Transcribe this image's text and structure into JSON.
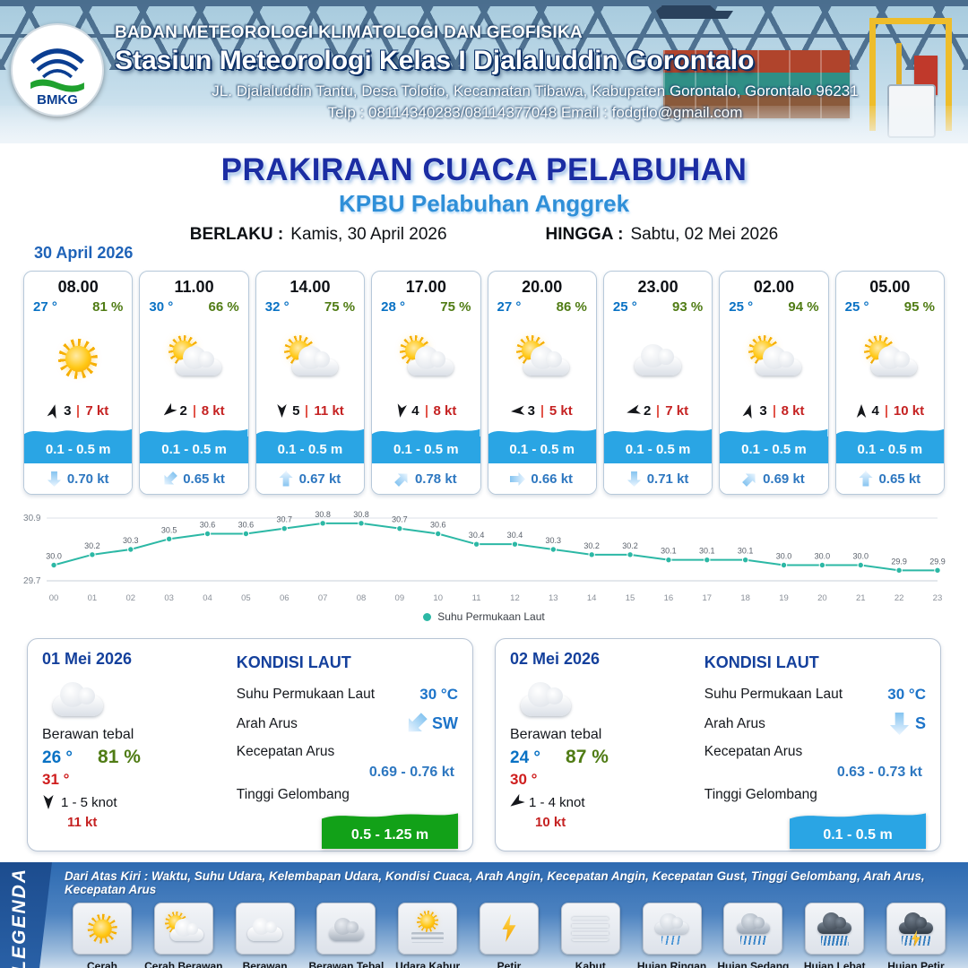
{
  "header": {
    "agency": "BADAN METEOROLOGI KLIMATOLOGI DAN GEOFISIKA",
    "station": "Stasiun Meteorologi Kelas I Djalaluddin Gorontalo",
    "address": "JL. Djalaluddin Tantu, Desa Tolotio, Kecamatan Tibawa, Kabupaten Gorontalo, Gorontalo 96231",
    "contact": "Telp : 08114340283/08114377048 Email : fodgtlo@gmail.com",
    "logo_text": "BMKG"
  },
  "title": {
    "main": "PRAKIRAAN CUACA PELABUHAN",
    "sub": "KPBU Pelabuhan Anggrek",
    "berlaku_label": "BERLAKU :",
    "berlaku_value": "Kamis, 30 April 2026",
    "hingga_label": "HINGGA :",
    "hingga_value": "Sabtu, 02 Mei 2026",
    "forecast_date": "30 April 2026"
  },
  "cards": [
    {
      "time": "08.00",
      "temp": "27 °",
      "humidity": "81 %",
      "icon": "cerah",
      "wind_dir_deg": 15,
      "wind_beaufort": "3",
      "wind_speed": "7 kt",
      "wave_height": "0.1 - 0.5 m",
      "current_dir_deg": 180,
      "current_speed": "0.70 kt"
    },
    {
      "time": "11.00",
      "temp": "30 °",
      "humidity": "66 %",
      "icon": "cerah-berawan",
      "wind_dir_deg": 230,
      "wind_beaufort": "2",
      "wind_speed": "8 kt",
      "wave_height": "0.1 - 0.5 m",
      "current_dir_deg": 225,
      "current_speed": "0.65 kt"
    },
    {
      "time": "14.00",
      "temp": "32 °",
      "humidity": "75 %",
      "icon": "cerah-berawan",
      "wind_dir_deg": 180,
      "wind_beaufort": "5",
      "wind_speed": "11 kt",
      "wave_height": "0.1 - 0.5 m",
      "current_dir_deg": 0,
      "current_speed": "0.67 kt"
    },
    {
      "time": "17.00",
      "temp": "28 °",
      "humidity": "75 %",
      "icon": "cerah-berawan",
      "wind_dir_deg": 190,
      "wind_beaufort": "4",
      "wind_speed": "8 kt",
      "wave_height": "0.1 - 0.5 m",
      "current_dir_deg": 45,
      "current_speed": "0.78 kt"
    },
    {
      "time": "20.00",
      "temp": "27 °",
      "humidity": "86 %",
      "icon": "cerah-berawan",
      "wind_dir_deg": 265,
      "wind_beaufort": "3",
      "wind_speed": "5 kt",
      "wave_height": "0.1 - 0.5 m",
      "current_dir_deg": 90,
      "current_speed": "0.66 kt"
    },
    {
      "time": "23.00",
      "temp": "25 °",
      "humidity": "93 %",
      "icon": "berawan",
      "wind_dir_deg": 255,
      "wind_beaufort": "2",
      "wind_speed": "7 kt",
      "wave_height": "0.1 - 0.5 m",
      "current_dir_deg": 180,
      "current_speed": "0.71 kt"
    },
    {
      "time": "02.00",
      "temp": "25 °",
      "humidity": "94 %",
      "icon": "cerah-berawan",
      "wind_dir_deg": 15,
      "wind_beaufort": "3",
      "wind_speed": "8 kt",
      "wave_height": "0.1 - 0.5 m",
      "current_dir_deg": 45,
      "current_speed": "0.69 kt"
    },
    {
      "time": "05.00",
      "temp": "25 °",
      "humidity": "95 %",
      "icon": "cerah-berawan",
      "wind_dir_deg": 0,
      "wind_beaufort": "4",
      "wind_speed": "10 kt",
      "wave_height": "0.1 - 0.5 m",
      "current_dir_deg": 0,
      "current_speed": "0.65 kt"
    }
  ],
  "chart_data": {
    "type": "line",
    "x": [
      "00",
      "01",
      "02",
      "03",
      "04",
      "05",
      "06",
      "07",
      "08",
      "09",
      "10",
      "11",
      "12",
      "13",
      "14",
      "15",
      "16",
      "17",
      "18",
      "19",
      "20",
      "21",
      "22",
      "23"
    ],
    "series": [
      {
        "name": "Suhu Permukaan Laut",
        "values": [
          30.0,
          30.2,
          30.3,
          30.5,
          30.6,
          30.6,
          30.7,
          30.8,
          30.8,
          30.7,
          30.6,
          30.4,
          30.4,
          30.3,
          30.2,
          30.2,
          30.1,
          30.1,
          30.1,
          30.0,
          30.0,
          30.0,
          29.9,
          29.9
        ]
      }
    ],
    "ylim": [
      29.7,
      30.9
    ],
    "line_color": "#2cb8a5",
    "grid": false,
    "legend_position": "bottom"
  },
  "labels": {
    "kondisi_laut": "KONDISI LAUT",
    "sst": "Suhu Permukaan Laut",
    "arah_arus": "Arah Arus",
    "kecepatan_arus": "Kecepatan Arus",
    "tinggi_gelombang": "Tinggi Gelombang"
  },
  "daily": [
    {
      "date": "01 Mei 2026",
      "icon": "berawan",
      "condition": "Berawan tebal",
      "temp_min": "26 °",
      "humidity": "81 %",
      "temp_max": "31 °",
      "wind_dir_deg": 180,
      "wind_range": "1 - 5 knot",
      "gust": "11 kt",
      "sst": "30 °C",
      "current_dir": "SW",
      "current_dir_deg": 225,
      "current_speed": "0.69 - 0.76 kt",
      "wave": "0.5 - 1.25 m",
      "wave_color": "green"
    },
    {
      "date": "02 Mei 2026",
      "icon": "berawan",
      "condition": "Berawan tebal",
      "temp_min": "24 °",
      "humidity": "87 %",
      "temp_max": "30 °",
      "wind_dir_deg": 235,
      "wind_range": "1 - 4 knot",
      "gust": "10 kt",
      "sst": "30 °C",
      "current_dir": "S",
      "current_dir_deg": 180,
      "current_speed": "0.63 - 0.73 kt",
      "wave": "0.1 - 0.5 m",
      "wave_color": "blue"
    }
  ],
  "legend": {
    "title": "LEGENDA",
    "note": "Dari Atas Kiri : Waktu, Suhu Udara, Kelembapan Udara, Kondisi Cuaca, Arah Angin, Kecepatan Angin, Kecepatan Gust, Tinggi Gelombang, Arah Arus, Kecepatan Arus",
    "items": [
      {
        "label": "Cerah",
        "icon": "cerah"
      },
      {
        "label": "Cerah Berawan",
        "icon": "cerah-berawan"
      },
      {
        "label": "Berawan",
        "icon": "berawan"
      },
      {
        "label": "Berawan Tebal",
        "icon": "berawan-tebal"
      },
      {
        "label": "Udara Kabur",
        "icon": "udara-kabur"
      },
      {
        "label": "Petir",
        "icon": "petir"
      },
      {
        "label": "Kabut",
        "icon": "kabut"
      },
      {
        "label": "Hujan Ringan",
        "icon": "hujan-ringan"
      },
      {
        "label": "Hujan Sedang",
        "icon": "hujan-sedang"
      },
      {
        "label": "Hujan Lebat",
        "icon": "hujan-lebat"
      },
      {
        "label": "Hujan Petir",
        "icon": "hujan-petir"
      }
    ]
  }
}
